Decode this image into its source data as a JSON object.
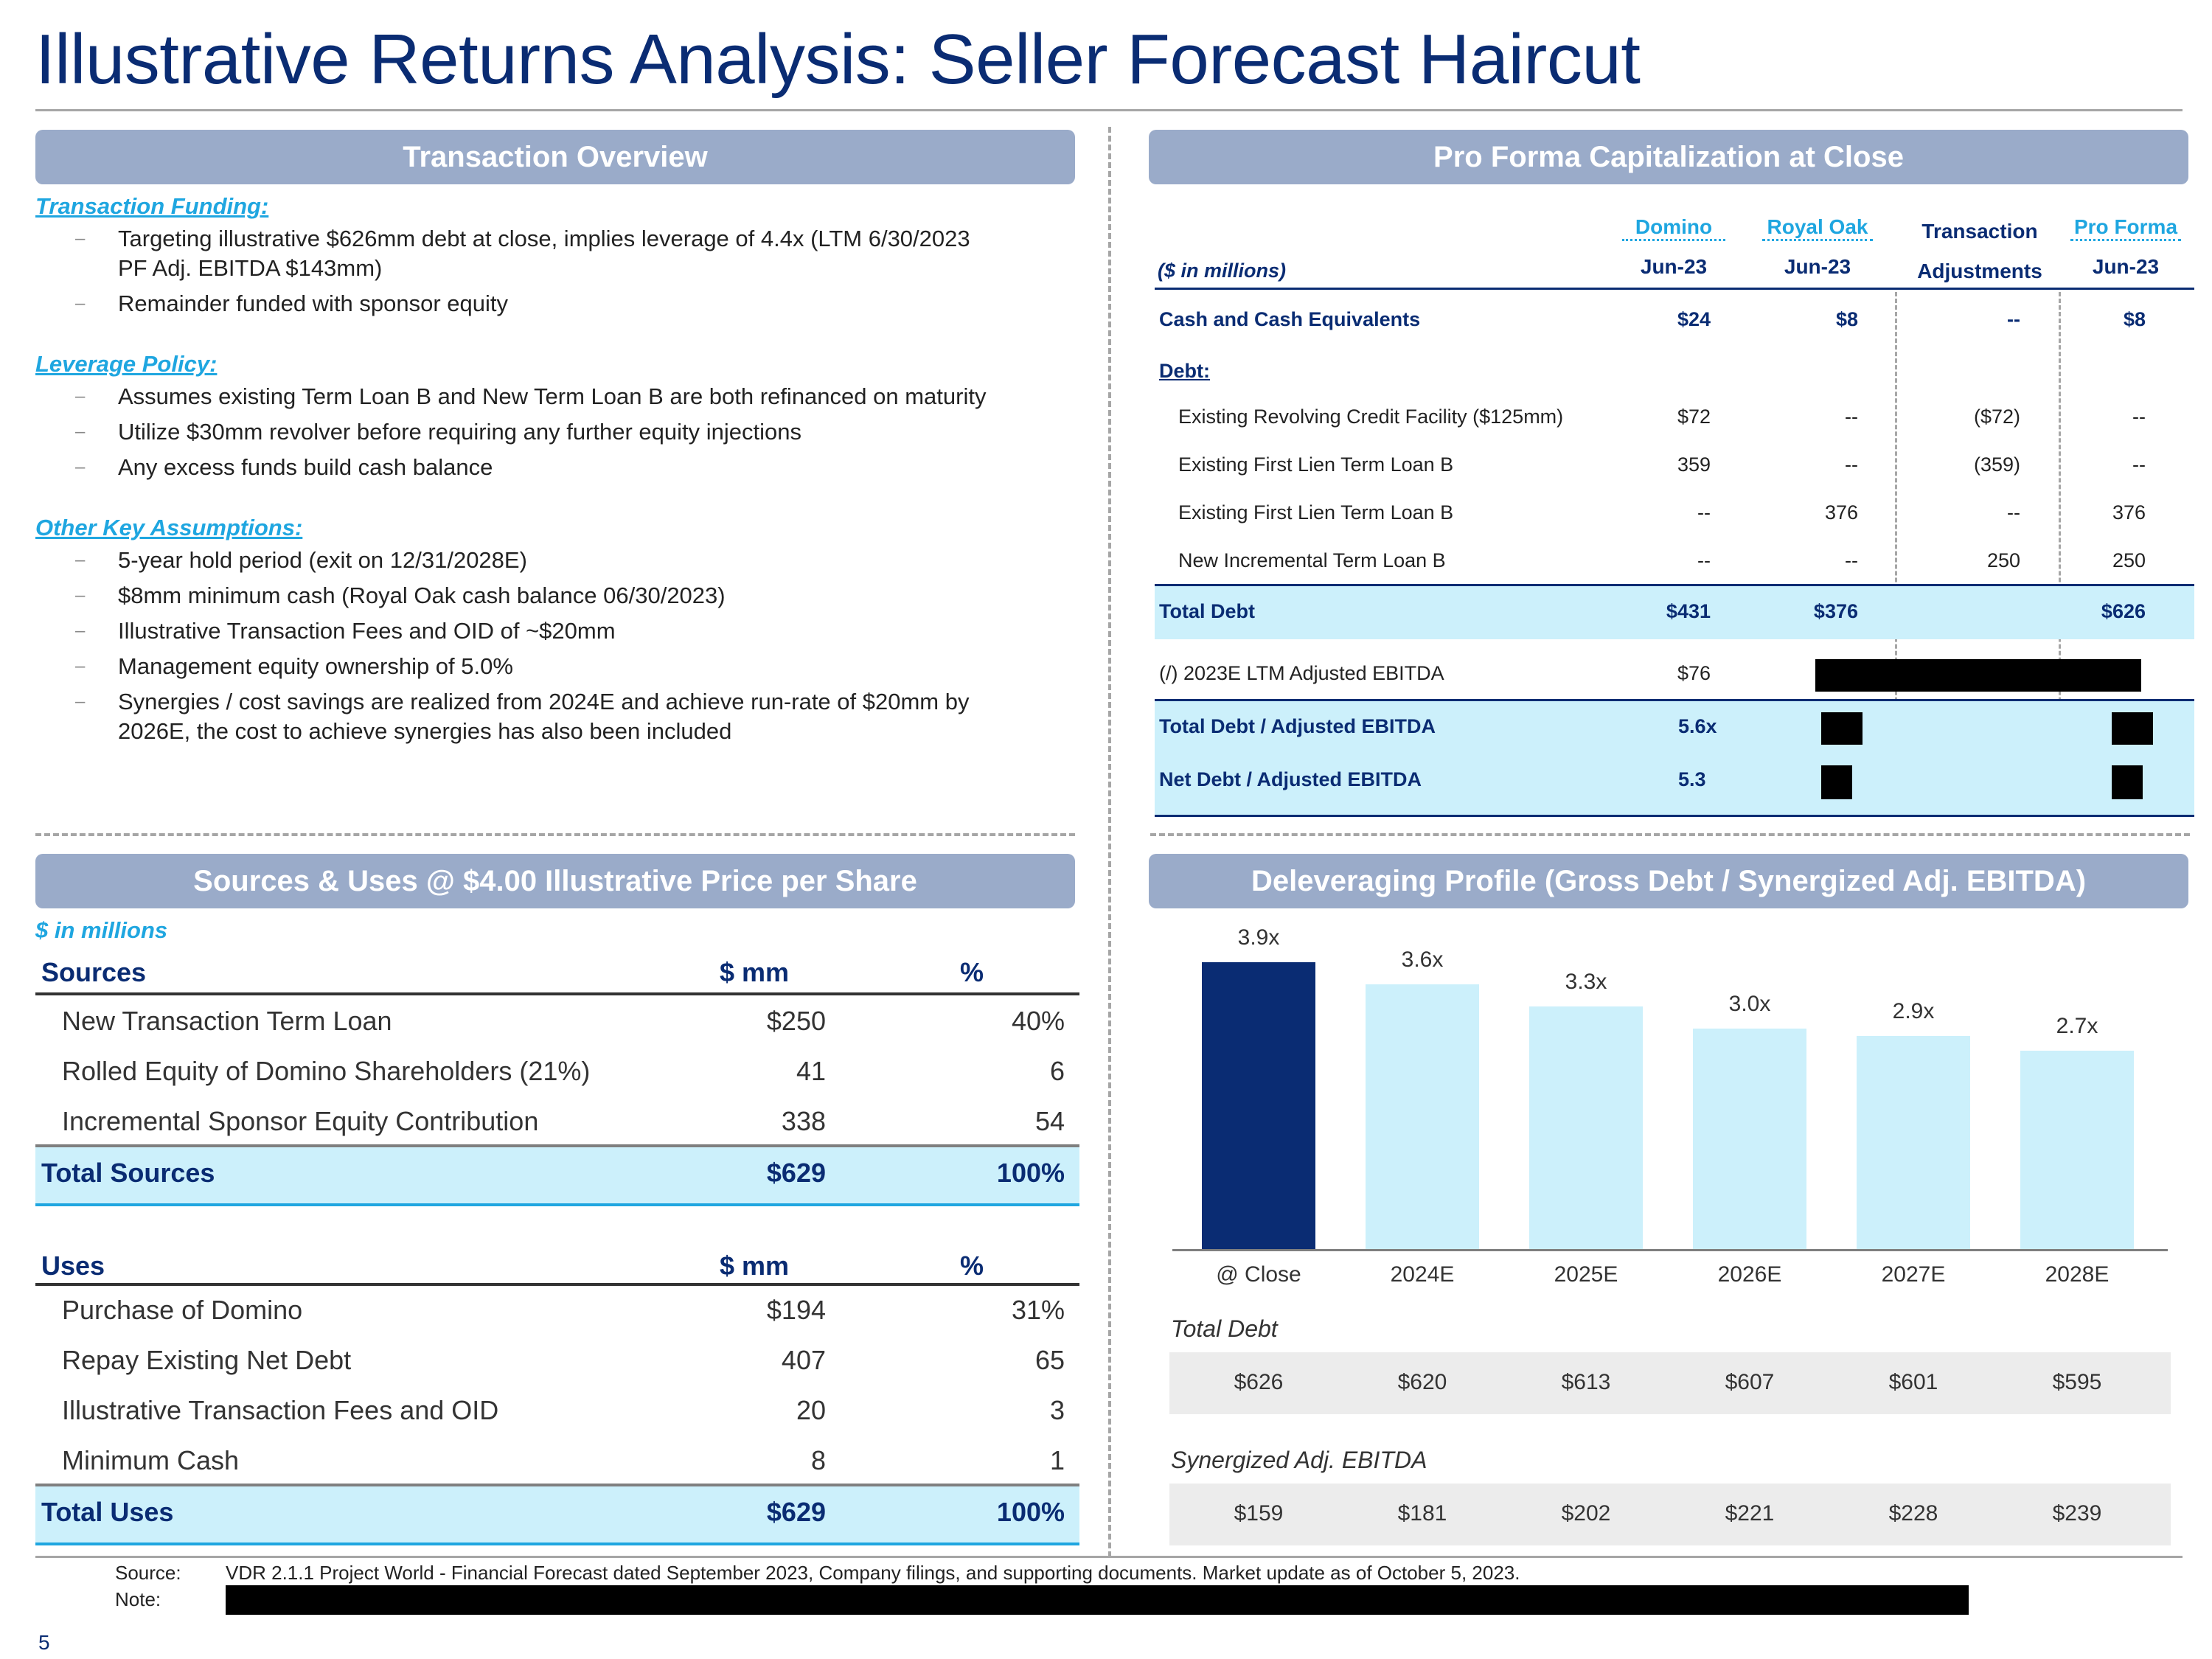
{
  "title": "Illustrative Returns Analysis: Seller Forecast Haircut",
  "page_number": "5",
  "transaction_overview": {
    "header": "Transaction Overview",
    "sections": [
      {
        "heading": "Transaction Funding:",
        "bullets": [
          "Targeting illustrative $626mm debt at close, implies leverage of 4.4x (LTM 6/30/2023 PF Adj. EBITDA $143mm)",
          "Remainder funded with sponsor equity"
        ]
      },
      {
        "heading": "Leverage Policy:",
        "bullets": [
          "Assumes existing Term Loan B and New Term Loan B are both refinanced on maturity",
          "Utilize $30mm revolver before requiring any further equity injections",
          "Any excess funds build cash balance"
        ]
      },
      {
        "heading": "Other Key Assumptions:",
        "bullets": [
          "5-year hold period (exit on 12/31/2028E)",
          "$8mm minimum cash (Royal Oak cash balance 06/30/2023)",
          "Illustrative Transaction Fees and OID of ~$20mm",
          "Management equity ownership of 5.0%",
          "Synergies / cost savings are realized from 2024E and achieve run-rate of $20mm by 2026E, the cost to achieve synergies has also been included"
        ]
      }
    ]
  },
  "capitalization": {
    "header": "Pro Forma Capitalization at Close",
    "units_label": "($ in millions)",
    "columns": [
      {
        "name": "Domino",
        "date": "Jun-23"
      },
      {
        "name": "Royal Oak",
        "date": "Jun-23"
      },
      {
        "name": "Transaction",
        "date": "Adjustments"
      },
      {
        "name": "Pro Forma",
        "date": "Jun-23"
      }
    ],
    "cash": {
      "label": "Cash and Cash Equivalents",
      "values": [
        "$24",
        "$8",
        "--",
        "$8"
      ]
    },
    "debt_label": "Debt:",
    "debt_rows": [
      {
        "label": "Existing Revolving Credit Facility ($125mm)",
        "values": [
          "$72",
          "--",
          "($72)",
          "--"
        ]
      },
      {
        "label": "Existing First Lien Term Loan B",
        "values": [
          "359",
          "--",
          "(359)",
          "--"
        ]
      },
      {
        "label": "Existing First Lien Term Loan B",
        "values": [
          "--",
          "376",
          "--",
          "376"
        ]
      },
      {
        "label": "New Incremental Term Loan B",
        "values": [
          "--",
          "--",
          "250",
          "250"
        ]
      }
    ],
    "total_debt": {
      "label": "Total Debt",
      "values": [
        "$431",
        "$376",
        "",
        "$626"
      ]
    },
    "ebitda": {
      "label": "(/) 2023E LTM Adjusted EBITDA",
      "value": "$76"
    },
    "total_leverage": {
      "label": "Total Debt / Adjusted EBITDA",
      "value": "5.6x"
    },
    "net_leverage": {
      "label": "Net Debt / Adjusted EBITDA",
      "value": "5.3"
    }
  },
  "sources_uses": {
    "header": "Sources & Uses @ $4.00 Illustrative Price per Share",
    "units_label": "$ in millions",
    "col_mm": "$ mm",
    "col_pct": "%",
    "sources_label": "Sources",
    "sources": [
      {
        "label": "New Transaction Term Loan",
        "mm": "$250",
        "pct": "40%"
      },
      {
        "label": "Rolled Equity of Domino Shareholders (21%)",
        "mm": "41",
        "pct": "6"
      },
      {
        "label": "Incremental Sponsor Equity Contribution",
        "mm": "338",
        "pct": "54"
      }
    ],
    "total_sources": {
      "label": "Total Sources",
      "mm": "$629",
      "pct": "100%"
    },
    "uses_label": "Uses",
    "uses": [
      {
        "label": "Purchase of Domino",
        "mm": "$194",
        "pct": "31%"
      },
      {
        "label": "Repay Existing Net Debt",
        "mm": "407",
        "pct": "65"
      },
      {
        "label": "Illustrative Transaction Fees and OID",
        "mm": "20",
        "pct": "3"
      },
      {
        "label": "Minimum Cash",
        "mm": "8",
        "pct": "1"
      }
    ],
    "total_uses": {
      "label": "Total Uses",
      "mm": "$629",
      "pct": "100%"
    }
  },
  "deleveraging": {
    "header": "Deleveraging Profile (Gross Debt / Synergized Adj. EBITDA)",
    "total_debt_label": "Total Debt",
    "total_debt_values": [
      "$626",
      "$620",
      "$613",
      "$607",
      "$601",
      "$595"
    ],
    "ebitda_label": "Synergized Adj. EBITDA",
    "ebitda_values": [
      "$159",
      "$181",
      "$202",
      "$221",
      "$228",
      "$239"
    ]
  },
  "chart_data": {
    "type": "bar",
    "categories": [
      "@ Close",
      "2024E",
      "2025E",
      "2026E",
      "2027E",
      "2028E"
    ],
    "values": [
      3.9,
      3.6,
      3.3,
      3.0,
      2.9,
      2.7
    ],
    "value_labels": [
      "3.9x",
      "3.6x",
      "3.3x",
      "3.0x",
      "2.9x",
      "2.7x"
    ],
    "ylim": [
      0,
      4.5
    ],
    "colors": {
      "first": "#0a2c73",
      "rest": "#ccf0fb"
    },
    "grid": false
  },
  "footer": {
    "source_label": "Source:",
    "source_text": "VDR 2.1.1 Project World - Financial Forecast dated September 2023, Company filings, and supporting documents. Market update as of October 5, 2023.",
    "note_label": "Note:"
  }
}
